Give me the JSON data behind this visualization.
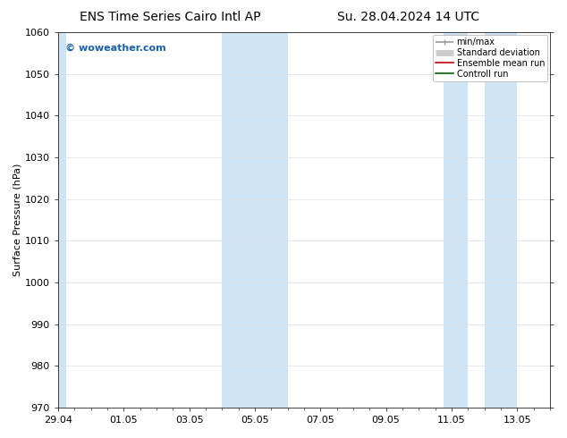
{
  "title_left": "ENS Time Series Cairo Intl AP",
  "title_right": "Su. 28.04.2024 14 UTC",
  "ylabel": "Surface Pressure (hPa)",
  "ylim": [
    970,
    1060
  ],
  "yticks": [
    970,
    980,
    990,
    1000,
    1010,
    1020,
    1030,
    1040,
    1050,
    1060
  ],
  "xlim_start": 0.0,
  "xlim_end": 15.0,
  "xtick_labels": [
    "29.04",
    "01.05",
    "03.05",
    "05.05",
    "07.05",
    "09.05",
    "11.05",
    "13.05"
  ],
  "xtick_positions": [
    0.0,
    2.0,
    4.0,
    6.0,
    8.0,
    10.0,
    12.0,
    14.0
  ],
  "shaded_bands": [
    {
      "x_start": 0.0,
      "x_end": 0.25
    },
    {
      "x_start": 5.0,
      "x_end": 7.0
    },
    {
      "x_start": 11.75,
      "x_end": 12.5
    },
    {
      "x_start": 13.0,
      "x_end": 14.0
    }
  ],
  "band_color": "#cfe4f5",
  "watermark": "© woweather.com",
  "watermark_color": "#1a5fa8",
  "background_color": "#ffffff",
  "plot_bg_color": "#ffffff",
  "legend_items": [
    {
      "label": "min/max",
      "color": "#999999",
      "linestyle": "-",
      "linewidth": 1.2
    },
    {
      "label": "Standard deviation",
      "color": "#cccccc",
      "linestyle": "-",
      "linewidth": 5
    },
    {
      "label": "Ensemble mean run",
      "color": "#cc0000",
      "linestyle": "-",
      "linewidth": 1.2
    },
    {
      "label": "Controll run",
      "color": "#006600",
      "linestyle": "-",
      "linewidth": 1.2
    }
  ],
  "title_fontsize": 10,
  "tick_fontsize": 8,
  "label_fontsize": 8,
  "watermark_fontsize": 8
}
